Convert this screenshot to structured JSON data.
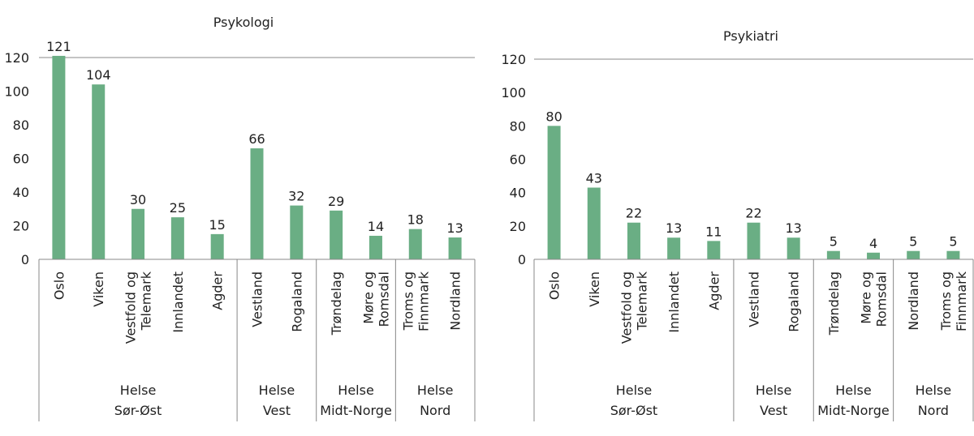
{
  "colors": {
    "bar": "#6aae84",
    "axis": "#888888",
    "text": "#222222"
  },
  "chart_data": [
    {
      "type": "bar",
      "title": "Psykologi",
      "categories": [
        "Oslo",
        "Viken",
        "Vestfold og Telemark",
        "Innlandet",
        "Agder",
        "Vestland",
        "Rogaland",
        "Trøndelag",
        "Møre og Romsdal",
        "Troms og Finnmark",
        "Nordland"
      ],
      "category_lines": [
        [
          "Oslo"
        ],
        [
          "Viken"
        ],
        [
          "Vestfold og",
          "Telemark"
        ],
        [
          "Innlandet"
        ],
        [
          "Agder"
        ],
        [
          "Vestland"
        ],
        [
          "Rogaland"
        ],
        [
          "Trøndelag"
        ],
        [
          "Møre og",
          "Romsdal"
        ],
        [
          "Troms og",
          "Finnmark"
        ],
        [
          "Nordland"
        ]
      ],
      "values": [
        121,
        104,
        30,
        25,
        15,
        66,
        32,
        29,
        14,
        18,
        13
      ],
      "groups": [
        {
          "lines": [
            "Helse",
            "Sør-Øst"
          ],
          "count": 5
        },
        {
          "lines": [
            "Helse",
            "Vest"
          ],
          "count": 2
        },
        {
          "lines": [
            "Helse",
            "Midt-Norge"
          ],
          "count": 2
        },
        {
          "lines": [
            "Helse",
            "Nord"
          ],
          "count": 2
        }
      ],
      "yticks": [
        0,
        20,
        40,
        60,
        80,
        100,
        120
      ],
      "ylim": [
        0,
        120
      ],
      "xlabel": "",
      "ylabel": "",
      "grid": false
    },
    {
      "type": "bar",
      "title": "Psykiatri",
      "categories": [
        "Oslo",
        "Viken",
        "Vestfold og Telemark",
        "Innlandet",
        "Agder",
        "Vestland",
        "Rogaland",
        "Trøndelag",
        "Møre og Romsdal",
        "Nordland",
        "Troms og Finnmark"
      ],
      "category_lines": [
        [
          "Oslo"
        ],
        [
          "Viken"
        ],
        [
          "Vestfold og",
          "Telemark"
        ],
        [
          "Innlandet"
        ],
        [
          "Agder"
        ],
        [
          "Vestland"
        ],
        [
          "Rogaland"
        ],
        [
          "Trøndelag"
        ],
        [
          "Møre og",
          "Romsdal"
        ],
        [
          "Nordland"
        ],
        [
          "Troms og",
          "Finnmark"
        ]
      ],
      "values": [
        80,
        43,
        22,
        13,
        11,
        22,
        13,
        5,
        4,
        5,
        5
      ],
      "groups": [
        {
          "lines": [
            "Helse",
            "Sør-Øst"
          ],
          "count": 5
        },
        {
          "lines": [
            "Helse",
            "Vest"
          ],
          "count": 2
        },
        {
          "lines": [
            "Helse",
            "Midt-Norge"
          ],
          "count": 2
        },
        {
          "lines": [
            "Helse",
            "Nord"
          ],
          "count": 2
        }
      ],
      "yticks": [
        0,
        20,
        40,
        60,
        80,
        100,
        120
      ],
      "ylim": [
        0,
        120
      ],
      "xlabel": "",
      "ylabel": "",
      "grid": false
    }
  ]
}
